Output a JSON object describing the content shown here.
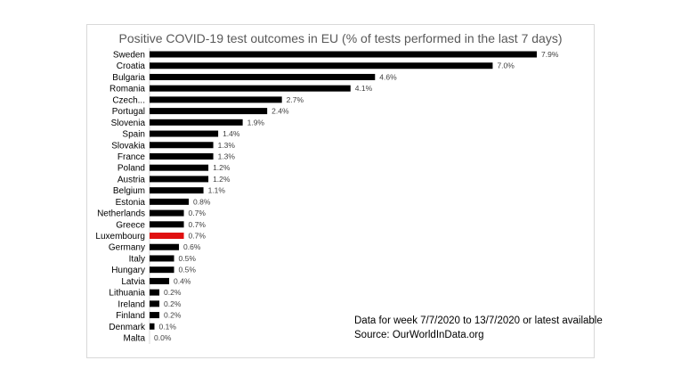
{
  "chart_data": {
    "type": "bar",
    "orientation": "horizontal",
    "title": "Positive COVID-19 test outcomes in EU (% of tests performed in the last 7 days)",
    "categories": [
      "Sweden",
      "Croatia",
      "Bulgaria",
      "Romania",
      "Czech...",
      "Portugal",
      "Slovenia",
      "Spain",
      "Slovakia",
      "France",
      "Poland",
      "Austria",
      "Belgium",
      "Estonia",
      "Netherlands",
      "Greece",
      "Luxembourg",
      "Germany",
      "Italy",
      "Hungary",
      "Latvia",
      "Lithuania",
      "Ireland",
      "Finland",
      "Denmark",
      "Malta"
    ],
    "values": [
      7.9,
      7.0,
      4.6,
      4.1,
      2.7,
      2.4,
      1.9,
      1.4,
      1.3,
      1.3,
      1.2,
      1.2,
      1.1,
      0.8,
      0.7,
      0.7,
      0.7,
      0.6,
      0.5,
      0.5,
      0.4,
      0.2,
      0.2,
      0.2,
      0.1,
      0.0
    ],
    "data_labels": [
      "7.9%",
      "7.0%",
      "4.6%",
      "4.1%",
      "2.7%",
      "2.4%",
      "1.9%",
      "1.4%",
      "1.3%",
      "1.3%",
      "1.2%",
      "1.2%",
      "1.1%",
      "0.8%",
      "0.7%",
      "0.7%",
      "0.7%",
      "0.6%",
      "0.5%",
      "0.5%",
      "0.4%",
      "0.2%",
      "0.2%",
      "0.2%",
      "0.1%",
      "0.0%"
    ],
    "highlight": "Luxembourg",
    "colors": {
      "bar": "#000000",
      "highlight": "#e01010",
      "label": "#404040"
    },
    "xlim": [
      0,
      7.9
    ],
    "grid": false,
    "legend": "none"
  },
  "notes": {
    "line1": "Data for week 7/7/2020 to 13/7/2020 or latest available",
    "line2": "Source: OurWorldInData.org"
  }
}
